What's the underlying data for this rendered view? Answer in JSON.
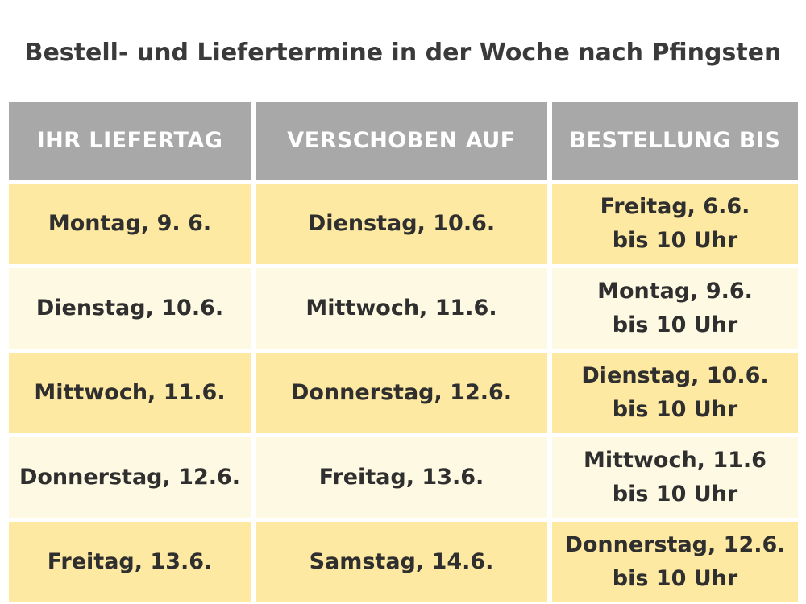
{
  "title": "Bestell- und Liefertermine in der Woche nach Pfingsten",
  "headers": [
    "IHR LIEFERTAG",
    "VERSCHOBEN AUF",
    "BESTELLUNG BIS"
  ],
  "rows": [
    {
      "liefertag": "Montag, 9. 6.",
      "verschoben": "Dienstag, 10.6.",
      "bestellung_day": "Freitag, 6.6.",
      "bestellung_time": "bis 10 Uhr"
    },
    {
      "liefertag": "Dienstag, 10.6.",
      "verschoben": "Mittwoch, 11.6.",
      "bestellung_day": "Montag, 9.6.",
      "bestellung_time": "bis 10 Uhr"
    },
    {
      "liefertag": "Mittwoch, 11.6.",
      "verschoben": "Donnerstag, 12.6.",
      "bestellung_day": "Dienstag, 10.6.",
      "bestellung_time": "bis 10 Uhr"
    },
    {
      "liefertag": "Donnerstag, 12.6.",
      "verschoben": "Freitag, 13.6.",
      "bestellung_day": "Mittwoch, 11.6",
      "bestellung_time": "bis 10 Uhr"
    },
    {
      "liefertag": "Freitag, 13.6.",
      "verschoben": "Samstag, 14.6.",
      "bestellung_day": "Donnerstag, 12.6.",
      "bestellung_time": "bis 10 Uhr"
    }
  ],
  "colors": {
    "header_bg": "#a8a8a8",
    "row_dark": "#fde9a1",
    "row_light": "#fef9e3"
  }
}
